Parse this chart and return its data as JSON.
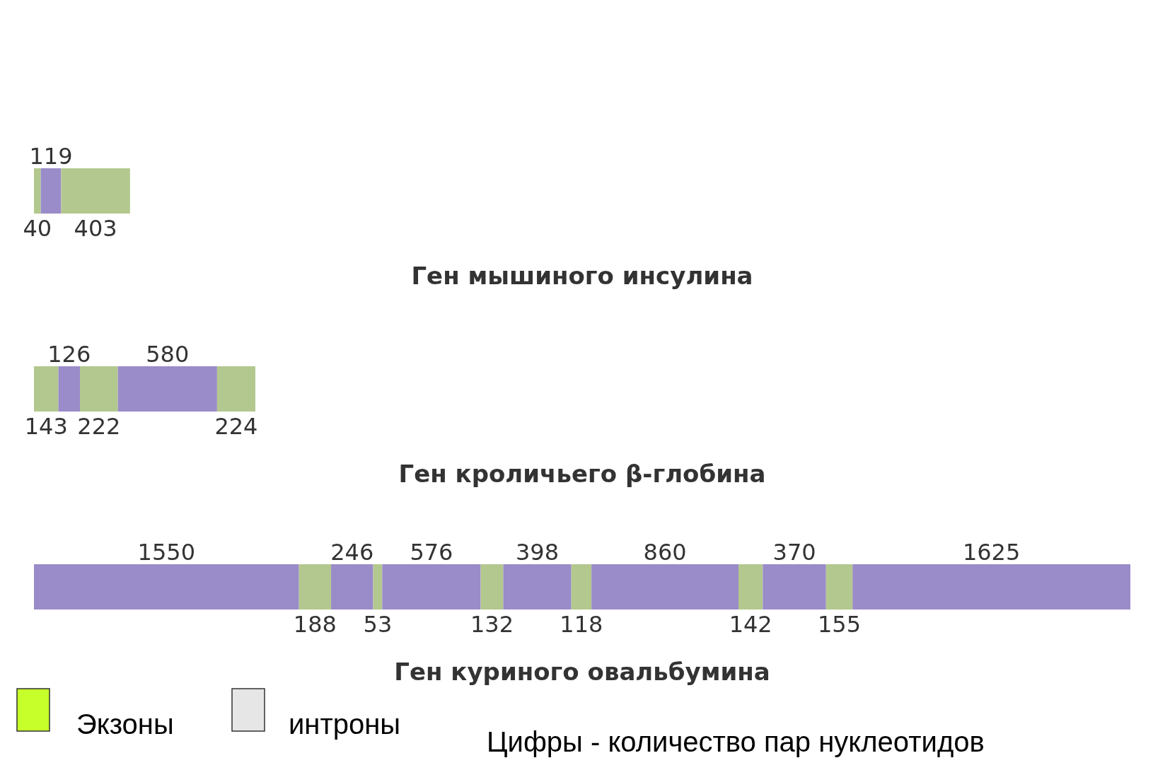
{
  "chart_data": {
    "type": "bar",
    "orientation": "horizontal",
    "stacked": true,
    "data_labels": true,
    "categories": [
      "Ген мышиного инсулина",
      "Ген кроличьего β-глобина",
      "Ген куриного овальбумина"
    ],
    "series": [
      {
        "color": "#b3c88e",
        "values": [
          40,
          143,
          null
        ]
      },
      {
        "color": "#9a8bc9",
        "values": [
          119,
          126,
          1550
        ]
      },
      {
        "color": "#b3c88e",
        "values": [
          403,
          222,
          188
        ]
      },
      {
        "color": "#9a8bc9",
        "values": [
          null,
          580,
          246
        ]
      },
      {
        "color": "#b3c88e",
        "values": [
          null,
          224,
          53
        ]
      },
      {
        "color": "#9a8bc9",
        "values": [
          null,
          null,
          576
        ]
      },
      {
        "color": "#b3c88e",
        "values": [
          null,
          null,
          132
        ]
      },
      {
        "color": "#9a8bc9",
        "values": [
          null,
          null,
          398
        ]
      },
      {
        "color": "#b3c88e",
        "values": [
          null,
          null,
          118
        ]
      },
      {
        "color": "#9a8bc9",
        "values": [
          null,
          null,
          860
        ]
      },
      {
        "color": "#b3c88e",
        "values": [
          null,
          null,
          142
        ]
      },
      {
        "color": "#9a8bc9",
        "values": [
          null,
          null,
          370
        ]
      },
      {
        "color": "#b3c88e",
        "values": [
          null,
          null,
          155
        ]
      },
      {
        "color": "#9a8bc9",
        "values": [
          null,
          null,
          1625
        ]
      }
    ],
    "annotations": [
      "Экзоны",
      "интроны",
      "Цифры - количество пар нуклеотидов"
    ]
  }
}
